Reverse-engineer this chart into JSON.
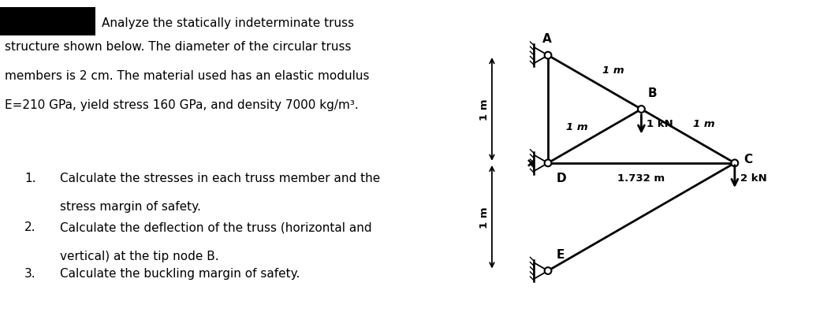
{
  "title_text": "Analyze the statically indeterminate truss",
  "subtitle_lines": [
    "structure shown below. The diameter of the circular truss",
    "members is 2 cm. The material used has an elastic modulus",
    "E=210 GPa, yield stress 160 GPa, and density 7000 kg/m³."
  ],
  "numbered_items": [
    [
      "Calculate the stresses in each truss member and the",
      "stress margin of safety."
    ],
    [
      "Calculate the deflection of the truss (horizontal and",
      "vertical) at the tip node B."
    ],
    [
      "Calculate the buckling margin of safety."
    ]
  ],
  "black": "#000000",
  "white": "#ffffff",
  "bg": "#ffffff",
  "fontsize_main": 11.0,
  "fontsize_diagram": 9.5,
  "fontsize_label": 11.0
}
